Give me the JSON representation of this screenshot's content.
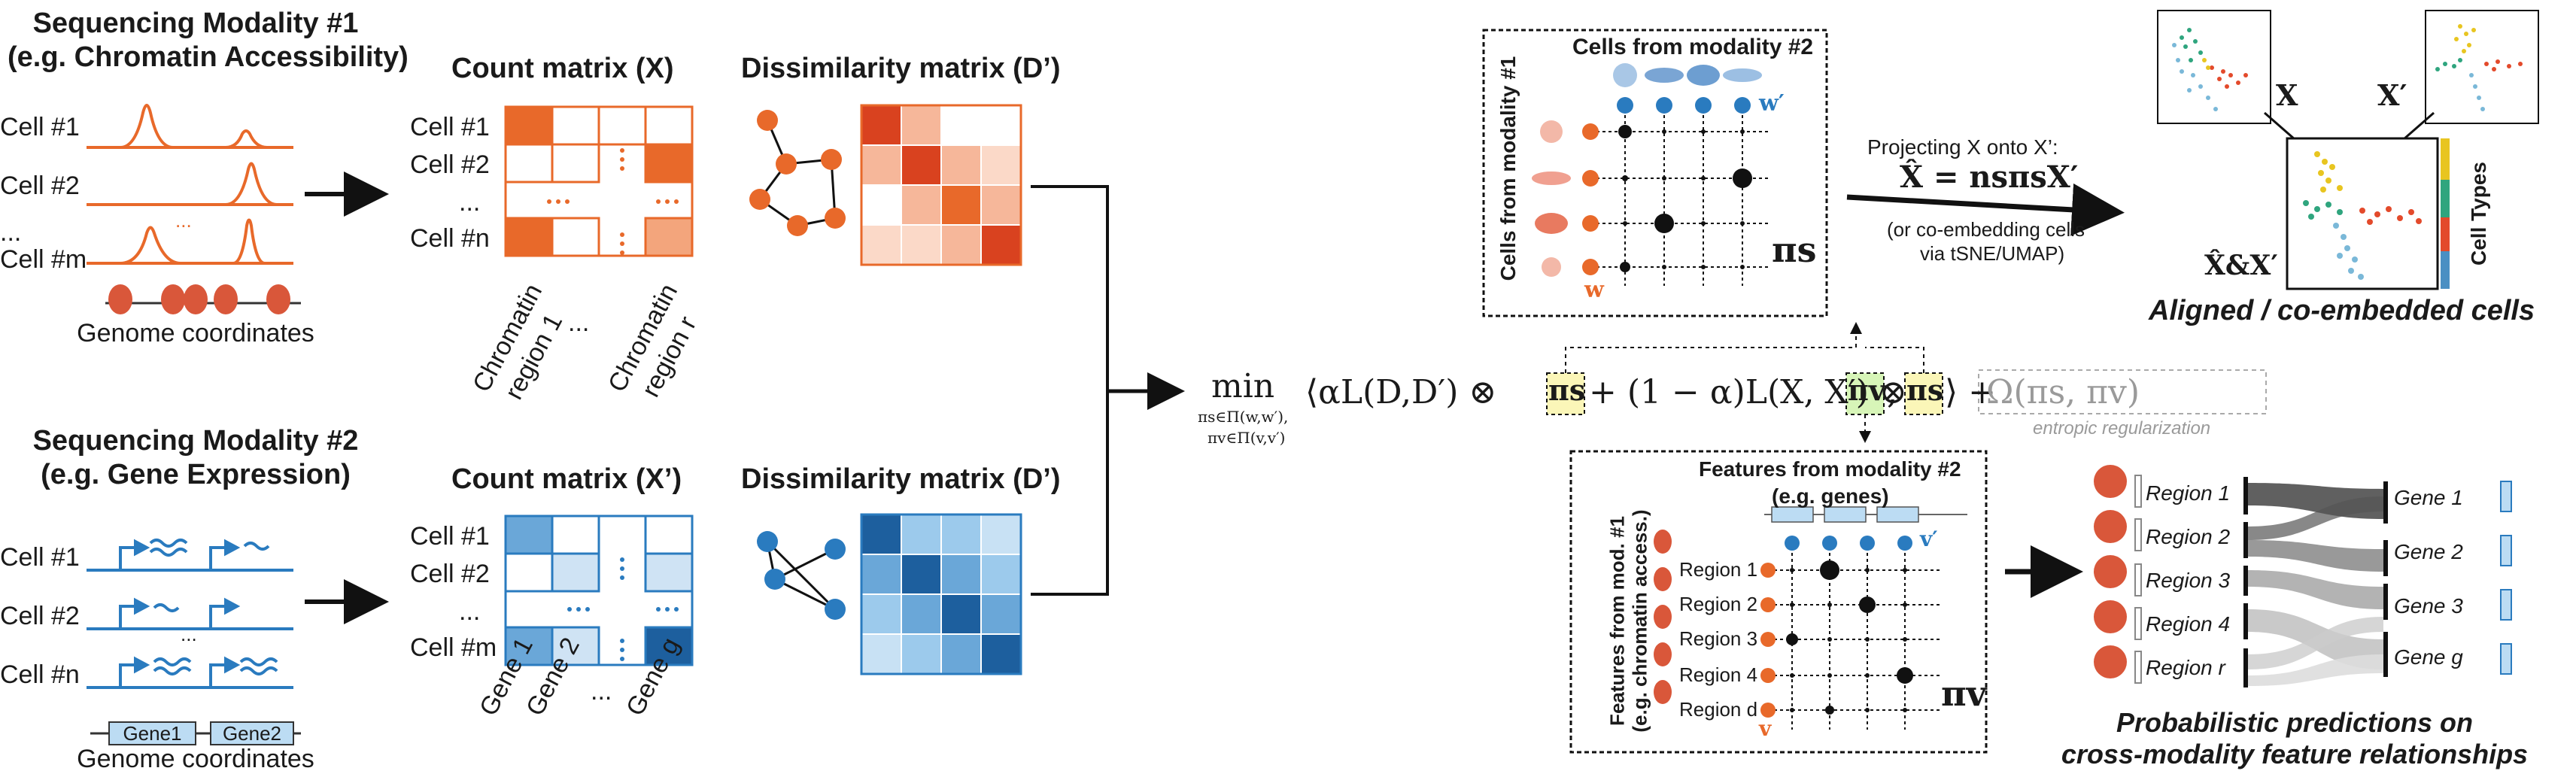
{
  "modality1": {
    "title": "Sequencing Modality #1",
    "subtitle": "(e.g. Chromatin Accessibility)",
    "cells": [
      "Cell #1",
      "Cell #2",
      "...",
      "Cell #m"
    ],
    "axis": "Genome coordinates",
    "dots": "..."
  },
  "modality2": {
    "title": "Sequencing Modality #2",
    "subtitle": "(e.g. Gene Expression)",
    "cells": [
      "Cell #1",
      "Cell #2",
      "Cell #n"
    ],
    "genes": [
      "Gene1",
      "Gene2"
    ],
    "axis": "Genome coordinates",
    "dots": "..."
  },
  "count1": {
    "title": "Count matrix (X)",
    "rows": [
      "Cell #1",
      "Cell #2",
      "...",
      "Cell #n"
    ],
    "cols": [
      "Chromatin region 1",
      "...",
      "Chromatin region r"
    ],
    "col1a": "Chromatin",
    "col1b": "region 1",
    "colra": "Chromatin",
    "colrb": "region r",
    "colDots": "...",
    "color": "#e8692a"
  },
  "count2": {
    "title": "Count matrix (X’)",
    "rows": [
      "Cell #1",
      "Cell #2",
      "...",
      "Cell #m"
    ],
    "cols": [
      "Gene 1",
      "Gene 2",
      "...",
      "Gene g"
    ],
    "color": "#2a7bbf"
  },
  "diss1": {
    "title": "Dissimilarity matrix (D’)"
  },
  "diss2": {
    "title": "Dissimilarity matrix (D’)"
  },
  "objective": {
    "min": "min",
    "sub1": "πs∈Π(w,w′),",
    "sub2": "πv∈Π(v,v′)",
    "body": "⟨αL(D,D′) ⊗",
    "pis": "πs",
    "mid": "+ (1 − α)L(X, X′) ⊗",
    "piv": "πv",
    "comma": ",",
    "pis2": "πs",
    "close": "⟩ +",
    "reg": "Ω(πs, πv)",
    "regLabel": "entropic regularization"
  },
  "cellPanel": {
    "title": "Cells from modality #2",
    "ylabel": "Cells from modality #1",
    "w": "w",
    "wprime": "w′",
    "pi": "πs"
  },
  "featPanel": {
    "title": "Features from modality #2",
    "subtitle": "(e.g. genes)",
    "ylabel1": "Features from mod. #1",
    "ylabel2": "(e.g. chromatin access.)",
    "rows": [
      "Region 1",
      "Region 2",
      "Region 3",
      "Region 4",
      "Region d"
    ],
    "v": "v",
    "vprime": "v′",
    "pi": "πv"
  },
  "projection": {
    "line1": "Projecting X onto X’:",
    "formula": "X̂ = nsπsX′",
    "line3": "(or co-embedding cells",
    "line4": "via tSNE/UMAP)"
  },
  "embed": {
    "x": "X",
    "xprime": "X′",
    "combined": "X̂&X′",
    "legend": "Cell Types",
    "caption": "Aligned / co-embedded cells"
  },
  "sankey": {
    "regions": [
      "Region 1",
      "Region 2",
      "Region 3",
      "Region 4",
      "Region r"
    ],
    "genes": [
      "Gene 1",
      "Gene 2",
      "Gene 3",
      "Gene g"
    ],
    "caption1": "Probabilistic predictions on",
    "caption2": "cross-modality feature relationships"
  },
  "colors": {
    "orange": "#e8692a",
    "blue": "#2a7bbf",
    "black": "#111111"
  }
}
